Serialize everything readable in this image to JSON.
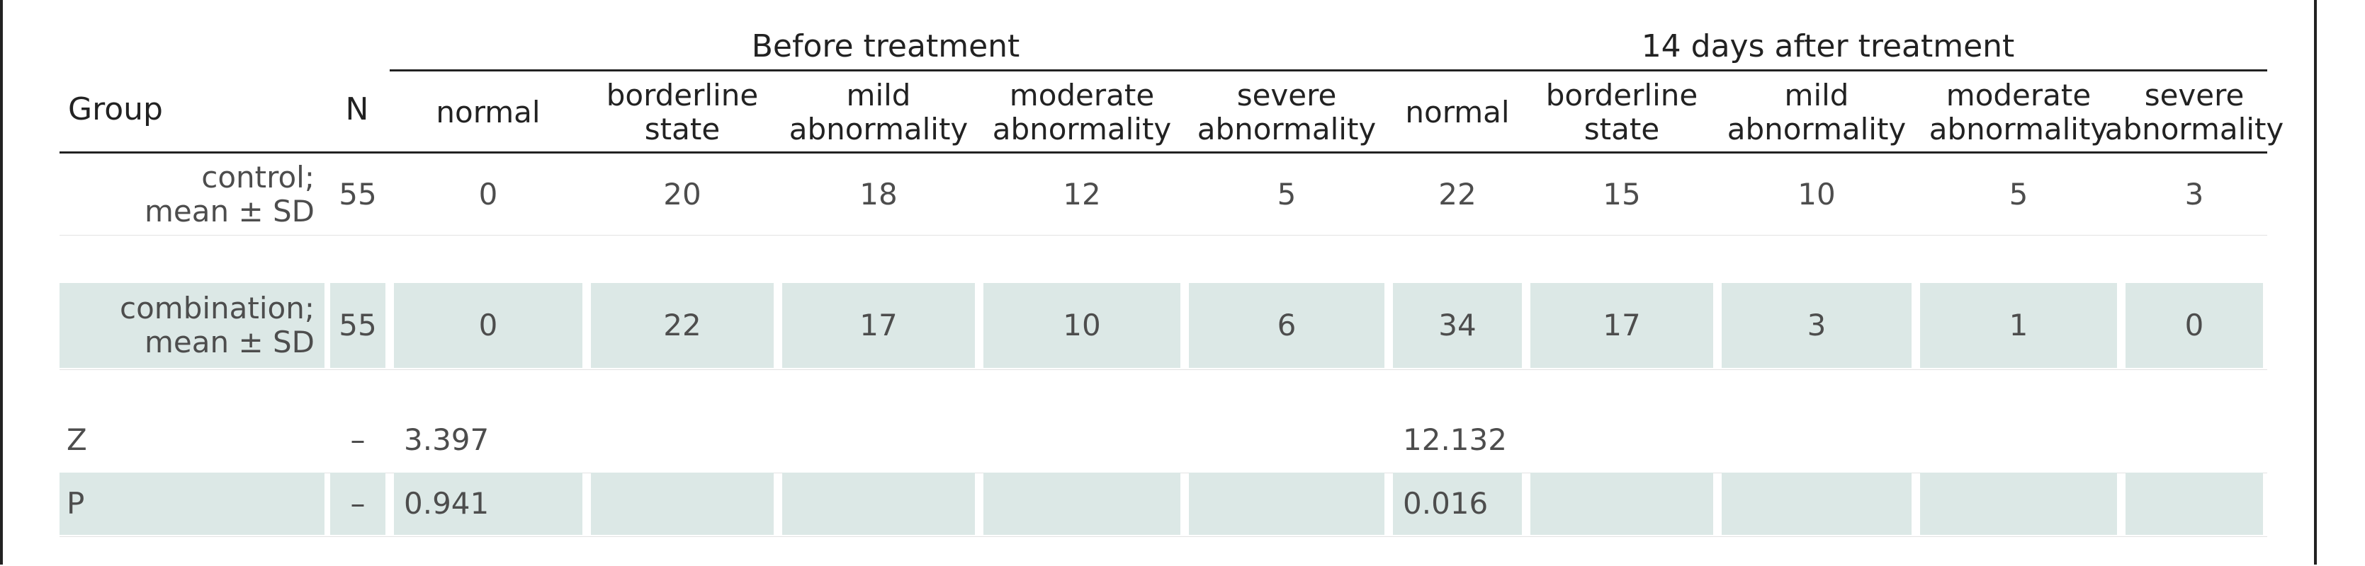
{
  "table": {
    "group_header": "Group",
    "n_header": "N",
    "span_before": "Before treatment",
    "span_after": "14 days after treatment",
    "subheaders": [
      "normal",
      "borderline\nstate",
      "mild\nabnormality",
      "moderate\nabnormality",
      "severe\nabnormality"
    ],
    "rows": [
      {
        "group": "control;\nmean ± SD",
        "n": "55",
        "before": [
          "0",
          "20",
          "18",
          "12",
          "5"
        ],
        "after": [
          "22",
          "15",
          "10",
          "5",
          "3"
        ]
      },
      {
        "group": "combination;\nmean ± SD",
        "n": "55",
        "before": [
          "0",
          "22",
          "17",
          "10",
          "6"
        ],
        "after": [
          "34",
          "17",
          "3",
          "1",
          "0"
        ]
      },
      {
        "group": "Z",
        "n": "–",
        "before": [
          "3.397",
          "",
          "",
          "",
          ""
        ],
        "after": [
          "12.132",
          "",
          "",
          "",
          ""
        ]
      },
      {
        "group": "P",
        "n": "–",
        "before": [
          "0.941",
          "",
          "",
          "",
          ""
        ],
        "after": [
          "0.016",
          "",
          "",
          "",
          ""
        ]
      }
    ]
  },
  "colors": {
    "shade": "#dce8e6",
    "rule": "#222222",
    "text": "#4d4d4d"
  }
}
